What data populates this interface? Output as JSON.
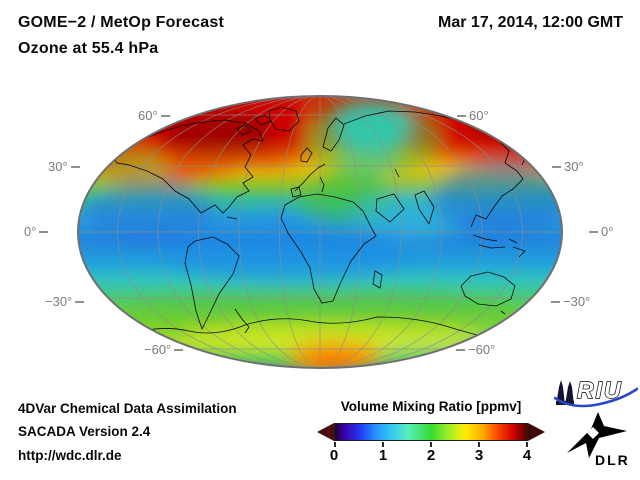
{
  "header": {
    "title_line1": "GOME−2 / MetOp Forecast",
    "title_line2": "Ozone at 55.4 hPa",
    "datetime": "Mar 17, 2014, 12:00 GMT"
  },
  "map": {
    "lat_labels": [
      "60°",
      "30°",
      "0°",
      "−30°",
      "−60°"
    ]
  },
  "colorbar": {
    "title": "Volume Mixing Ratio [ppmv]",
    "ticks": [
      "0",
      "1",
      "2",
      "3",
      "4"
    ]
  },
  "footer": {
    "line1": "4DVar Chemical Data Assimilation",
    "line2": "SACADA Version 2.4",
    "line3": "http://wdc.dlr.de"
  },
  "logos": {
    "riu_text": "RIU",
    "dlr_text": "DLR",
    "riu_wave_color": "#2b46c8",
    "logo_color": "#000000"
  },
  "chart_data": {
    "type": "heatmap",
    "title": "GOME−2 / MetOp Forecast",
    "subtitle": "Ozone at 55.4 hPa",
    "timestamp": "Mar 17, 2014, 12:00 GMT",
    "projection": "Mollweide-style global ellipse, central meridian 0°",
    "units": "ppmv",
    "value_range": [
      0,
      4
    ],
    "grid": {
      "lat_labels_deg": [
        60,
        30,
        0,
        -30,
        -60
      ],
      "lon_spacing_deg": 30,
      "grid_on": true
    },
    "colorbar": {
      "label": "Volume Mixing Ratio [ppmv]",
      "ticks": [
        0,
        1,
        2,
        3,
        4
      ],
      "underflow_color": "#4a0c0c",
      "overflow_color": "#3c0808",
      "colormap_stops": [
        {
          "pos": 0.0,
          "color": "#1b0030"
        },
        {
          "pos": 0.05,
          "color": "#3a00b0"
        },
        {
          "pos": 0.13,
          "color": "#2438ee"
        },
        {
          "pos": 0.22,
          "color": "#2699ff"
        },
        {
          "pos": 0.3,
          "color": "#35cdee"
        },
        {
          "pos": 0.38,
          "color": "#56eebb"
        },
        {
          "pos": 0.5,
          "color": "#35dd35"
        },
        {
          "pos": 0.6,
          "color": "#a8ee22"
        },
        {
          "pos": 0.68,
          "color": "#ffee00"
        },
        {
          "pos": 0.77,
          "color": "#ffaa00"
        },
        {
          "pos": 0.85,
          "color": "#ff4400"
        },
        {
          "pos": 0.93,
          "color": "#cc0000"
        },
        {
          "pos": 1.0,
          "color": "#550000"
        }
      ]
    },
    "zonal_bands": [
      {
        "lat_deg": 90,
        "y_frac": 0.0,
        "approx_ppmv": 3.8,
        "color": "#c83214"
      },
      {
        "lat_deg": 72,
        "y_frac": 0.08,
        "approx_ppmv": 3.9,
        "color": "#cc2200"
      },
      {
        "lat_deg": 60,
        "y_frac": 0.16,
        "approx_ppmv": 3.6,
        "color": "#dd4400"
      },
      {
        "lat_deg": 50,
        "y_frac": 0.22,
        "approx_ppmv": 3.1,
        "color": "#ee8800"
      },
      {
        "lat_deg": 44,
        "y_frac": 0.27,
        "approx_ppmv": 2.7,
        "color": "#ddcc11"
      },
      {
        "lat_deg": 37,
        "y_frac": 0.32,
        "approx_ppmv": 2.3,
        "color": "#77cc33"
      },
      {
        "lat_deg": 28,
        "y_frac": 0.38,
        "approx_ppmv": 1.9,
        "color": "#35bb99"
      },
      {
        "lat_deg": 15,
        "y_frac": 0.45,
        "approx_ppmv": 1.5,
        "color": "#2aa0d8"
      },
      {
        "lat_deg": 0,
        "y_frac": 0.53,
        "approx_ppmv": 1.3,
        "color": "#2288dd"
      },
      {
        "lat_deg": -12,
        "y_frac": 0.61,
        "approx_ppmv": 1.4,
        "color": "#22a0dd"
      },
      {
        "lat_deg": -25,
        "y_frac": 0.68,
        "approx_ppmv": 1.7,
        "color": "#33c4bb"
      },
      {
        "lat_deg": -40,
        "y_frac": 0.76,
        "approx_ppmv": 2.1,
        "color": "#55cc66"
      },
      {
        "lat_deg": -55,
        "y_frac": 0.84,
        "approx_ppmv": 2.5,
        "color": "#99dd22"
      },
      {
        "lat_deg": -65,
        "y_frac": 0.9,
        "approx_ppmv": 2.6,
        "color": "#aadd33"
      },
      {
        "lat_deg": -78,
        "y_frac": 0.96,
        "approx_ppmv": 2.2,
        "color": "#66cc55"
      },
      {
        "lat_deg": -90,
        "y_frac": 1.0,
        "approx_ppmv": 2.0,
        "color": "#44bb66"
      }
    ],
    "features": [
      {
        "region": "Canada / Greenland / North Atlantic 55–80°N",
        "approx_ppmv": 3.9,
        "description": "deep red ozone maximum"
      },
      {
        "region": "Siberia 55–75°N",
        "approx_ppmv": 3.8,
        "description": "deep red ozone maximum"
      },
      {
        "region": "Scandinavia / near North Pole",
        "approx_ppmv": 1.8,
        "description": "cyan-green polar trough"
      },
      {
        "region": "Central Europe",
        "approx_ppmv": 2.2,
        "description": "green patch"
      },
      {
        "region": "Subtropical N Pacific and W Pacific / Indian Ocean",
        "approx_ppmv": 1.2,
        "description": "deep blue minima"
      },
      {
        "region": "Tropics",
        "approx_ppmv": 1.3,
        "description": "blue / cyan low values"
      },
      {
        "region": "Southern mid-latitudes 40–60°S",
        "approx_ppmv": 2.3,
        "description": "green band with yellow streak near 60°S"
      },
      {
        "region": "South polar cap",
        "approx_ppmv": 3.0,
        "description": "orange spot at bottom center"
      }
    ]
  }
}
